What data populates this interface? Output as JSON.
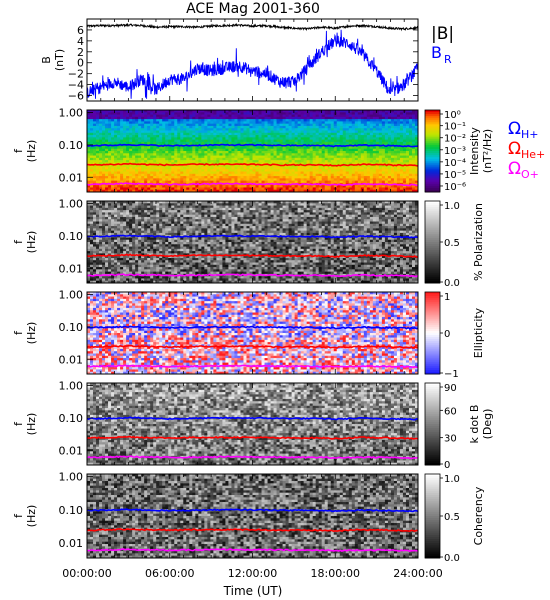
{
  "title": "ACE Mag 2001-360",
  "colors": {
    "bmag": "#000000",
    "br": "#0000ff",
    "h_plus": "#0000ff",
    "he_plus": "#ff0000",
    "o_plus": "#ff00ff"
  },
  "legends": {
    "bmag": "|B|",
    "br_main": "B",
    "br_sub": "R",
    "omega": "Ω",
    "h_sub": "H+",
    "he_sub": "He+",
    "o_sub": "O+"
  },
  "time_axis": {
    "label": "Time (UT)",
    "ticks": [
      "00:00:00",
      "06:00:00",
      "12:00:00",
      "18:00:00",
      "24:00:00"
    ]
  },
  "chart_data": [
    {
      "type": "line",
      "id": "b_field",
      "ylabel_line1": "B",
      "ylabel_line2": "(nT)",
      "xlim": [
        0,
        24
      ],
      "ylim": [
        -7,
        8
      ],
      "yticks": [
        "6",
        "4",
        "2",
        "0",
        "−2",
        "−4",
        "−6"
      ],
      "ytick_values": [
        6,
        4,
        2,
        0,
        -2,
        -4,
        -6
      ],
      "series": [
        {
          "name": "|B|",
          "x": [
            0,
            1,
            2,
            3,
            4,
            5,
            6,
            7,
            8,
            9,
            10,
            11,
            12,
            13,
            14,
            15,
            16,
            17,
            18,
            19,
            20,
            21,
            22,
            23,
            24
          ],
          "values": [
            6.7,
            6.8,
            6.8,
            6.9,
            6.8,
            6.5,
            6.6,
            6.6,
            6.5,
            6.7,
            6.8,
            6.9,
            6.7,
            6.8,
            6.5,
            6.3,
            6.2,
            6.5,
            6.3,
            6.7,
            6.8,
            6.6,
            6.3,
            6.2,
            6.4
          ]
        },
        {
          "name": "B_R",
          "x": [
            0,
            1,
            2,
            3,
            4,
            5,
            6,
            7,
            8,
            9,
            10,
            11,
            12,
            13,
            14,
            15,
            16,
            17,
            18,
            19,
            20,
            21,
            22,
            23,
            24
          ],
          "values": [
            -5.5,
            -4.5,
            -3.5,
            -4.5,
            -3.0,
            -5.0,
            -3.0,
            -3.0,
            -1.0,
            -1.5,
            -1.0,
            -0.5,
            -1.5,
            -2.0,
            -3.5,
            -3.5,
            -1.0,
            2.0,
            4.0,
            3.5,
            1.5,
            -1.5,
            -5.5,
            -4.0,
            -1.0
          ]
        }
      ]
    },
    {
      "type": "heatmap",
      "id": "intensity",
      "ylabel_line1": "f",
      "ylabel_line2": "(Hz)",
      "ytick_labels": [
        "1.00",
        "0.10",
        "0.01"
      ],
      "ytick_values": [
        1.0,
        0.1,
        0.01
      ],
      "ylim": [
        0.0035,
        1.2
      ],
      "colorbar_label_line1": "Intensity",
      "colorbar_label_line2": "(nT²/Hz)",
      "colorbar_ticks": [
        "10⁰",
        "10⁻¹",
        "10⁻²",
        "10⁻³",
        "10⁻⁴",
        "10⁻⁵",
        "10⁻⁶"
      ],
      "colorbar_tick_values": [
        0,
        -1,
        -2,
        -3,
        -4,
        -5,
        -6
      ],
      "colorbar_range": [
        -6.5,
        0.3
      ],
      "colormap": "rainbow"
    },
    {
      "type": "heatmap",
      "id": "polarization",
      "ylabel_line1": "f",
      "ylabel_line2": "(Hz)",
      "ytick_labels": [
        "1.00",
        "0.10",
        "0.01"
      ],
      "ytick_values": [
        1.0,
        0.1,
        0.01
      ],
      "colorbar_label_line1": "% Polarization",
      "colorbar_label_line2": "",
      "colorbar_ticks": [
        "1.0",
        "0.5",
        "0.0"
      ],
      "colorbar_tick_values": [
        1.0,
        0.5,
        0.0
      ],
      "colorbar_range": [
        0,
        1
      ],
      "colormap": "gray"
    },
    {
      "type": "heatmap",
      "id": "ellipticity",
      "ylabel_line1": "f",
      "ylabel_line2": "(Hz)",
      "ytick_labels": [
        "1.00",
        "0.10",
        "0.01"
      ],
      "ytick_values": [
        1.0,
        0.1,
        0.01
      ],
      "colorbar_label_line1": "Ellipticity",
      "colorbar_label_line2": "",
      "colorbar_ticks": [
        "1",
        "0",
        "−1"
      ],
      "colorbar_tick_values": [
        1,
        0,
        -1
      ],
      "colorbar_range": [
        -1,
        1
      ],
      "colormap": "bwr"
    },
    {
      "type": "heatmap",
      "id": "k_dot_b",
      "ylabel_line1": "f",
      "ylabel_line2": "(Hz)",
      "ytick_labels": [
        "1.00",
        "0.10",
        "0.01"
      ],
      "ytick_values": [
        1.0,
        0.1,
        0.01
      ],
      "colorbar_label_line1": "k dot B",
      "colorbar_label_line2": "(Deg)",
      "colorbar_ticks": [
        "90",
        "60",
        "30",
        "0"
      ],
      "colorbar_tick_values": [
        90,
        60,
        30,
        0
      ],
      "colorbar_range": [
        0,
        90
      ],
      "colormap": "gray"
    },
    {
      "type": "heatmap",
      "id": "coherency",
      "ylabel_line1": "f",
      "ylabel_line2": "(Hz)",
      "ytick_labels": [
        "1.00",
        "0.10",
        "0.01"
      ],
      "ytick_values": [
        1.0,
        0.1,
        0.01
      ],
      "colorbar_label_line1": "Coherency",
      "colorbar_label_line2": "",
      "colorbar_ticks": [
        "1.0",
        "0.5",
        "0.0"
      ],
      "colorbar_tick_values": [
        1.0,
        0.5,
        0.0
      ],
      "colorbar_range": [
        0,
        1
      ],
      "colormap": "gray"
    }
  ],
  "gyrofrequency_lines": {
    "x": [
      0,
      2,
      3,
      4,
      6,
      8,
      10,
      12,
      14,
      16,
      17,
      18,
      20,
      22,
      24
    ],
    "h_plus": [
      0.095,
      0.098,
      0.102,
      0.099,
      0.094,
      0.097,
      0.1,
      0.099,
      0.097,
      0.096,
      0.095,
      0.092,
      0.098,
      0.094,
      0.09
    ],
    "he_plus": [
      0.024,
      0.025,
      0.026,
      0.025,
      0.024,
      0.025,
      0.025,
      0.025,
      0.024,
      0.024,
      0.024,
      0.023,
      0.025,
      0.024,
      0.023
    ],
    "o_plus": [
      0.006,
      0.0062,
      0.0064,
      0.0062,
      0.006,
      0.0061,
      0.0063,
      0.0062,
      0.0061,
      0.006,
      0.006,
      0.0058,
      0.0061,
      0.006,
      0.0057
    ]
  }
}
